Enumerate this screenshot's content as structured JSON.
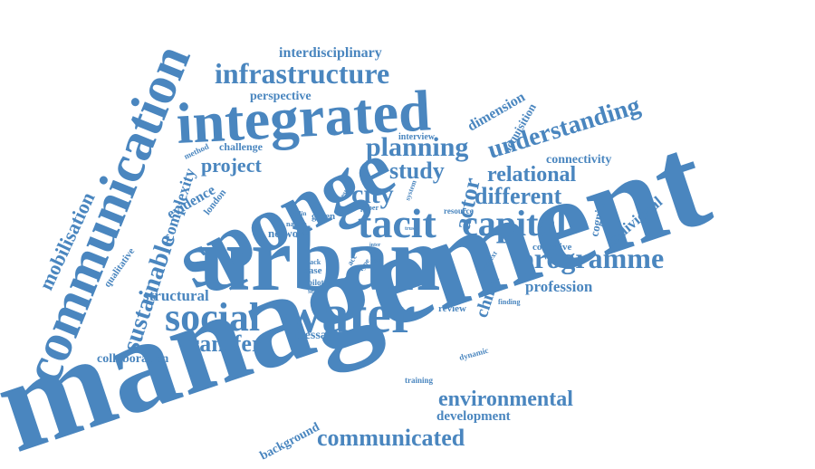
{
  "style": {
    "color": "#4a86bf",
    "background": "#ffffff"
  },
  "words": {
    "management": "management",
    "urban": "urban",
    "sponge": "sponge",
    "communication": "communication",
    "integrated": "integrated",
    "water": "water",
    "tacit": "tacit",
    "social": "social",
    "capital": "capital",
    "programme": "programme",
    "infrastructure": "infrastructure",
    "planning": "planning",
    "understanding": "understanding",
    "environmental": "environmental",
    "communicated": "communicated",
    "sustainable": "sustainable",
    "mobilisation": "mobilisation",
    "transfer": "transfer",
    "different": "different",
    "relational": "relational",
    "study": "study",
    "city": "city",
    "project": "project",
    "actor": "actor",
    "structural": "structural",
    "profession": "profession",
    "development": "development",
    "interdisciplinary": "interdisciplinary",
    "complexity": "complexity",
    "evidence": "evidence",
    "dimension": "dimension",
    "individual": "individual",
    "collaboration": "collaboration",
    "message": "message",
    "perspective": "perspective",
    "connectivity": "connectivity",
    "china": "china",
    "network": "network",
    "background": "background",
    "cognitive": "cognitive",
    "acquisition": "acquisition",
    "collective": "collective",
    "challenge": "challenge",
    "qualitative": "qualitative",
    "london": "london",
    "review": "review",
    "green": "green",
    "resource": "resource",
    "interview": "interview",
    "method": "method",
    "dynamic": "dynamic",
    "training": "training",
    "case": "case",
    "lack": "lack",
    "pilot": "pilot",
    "sense": "sense",
    "nature": "nature",
    "collin": "collin",
    "finding": "finding",
    "context": "context",
    "paper": "paper",
    "result": "result",
    "system": "system",
    "trust": "trust",
    "type": "type",
    "acc": "acc",
    "inter": "inter",
    "gap": "gap"
  }
}
